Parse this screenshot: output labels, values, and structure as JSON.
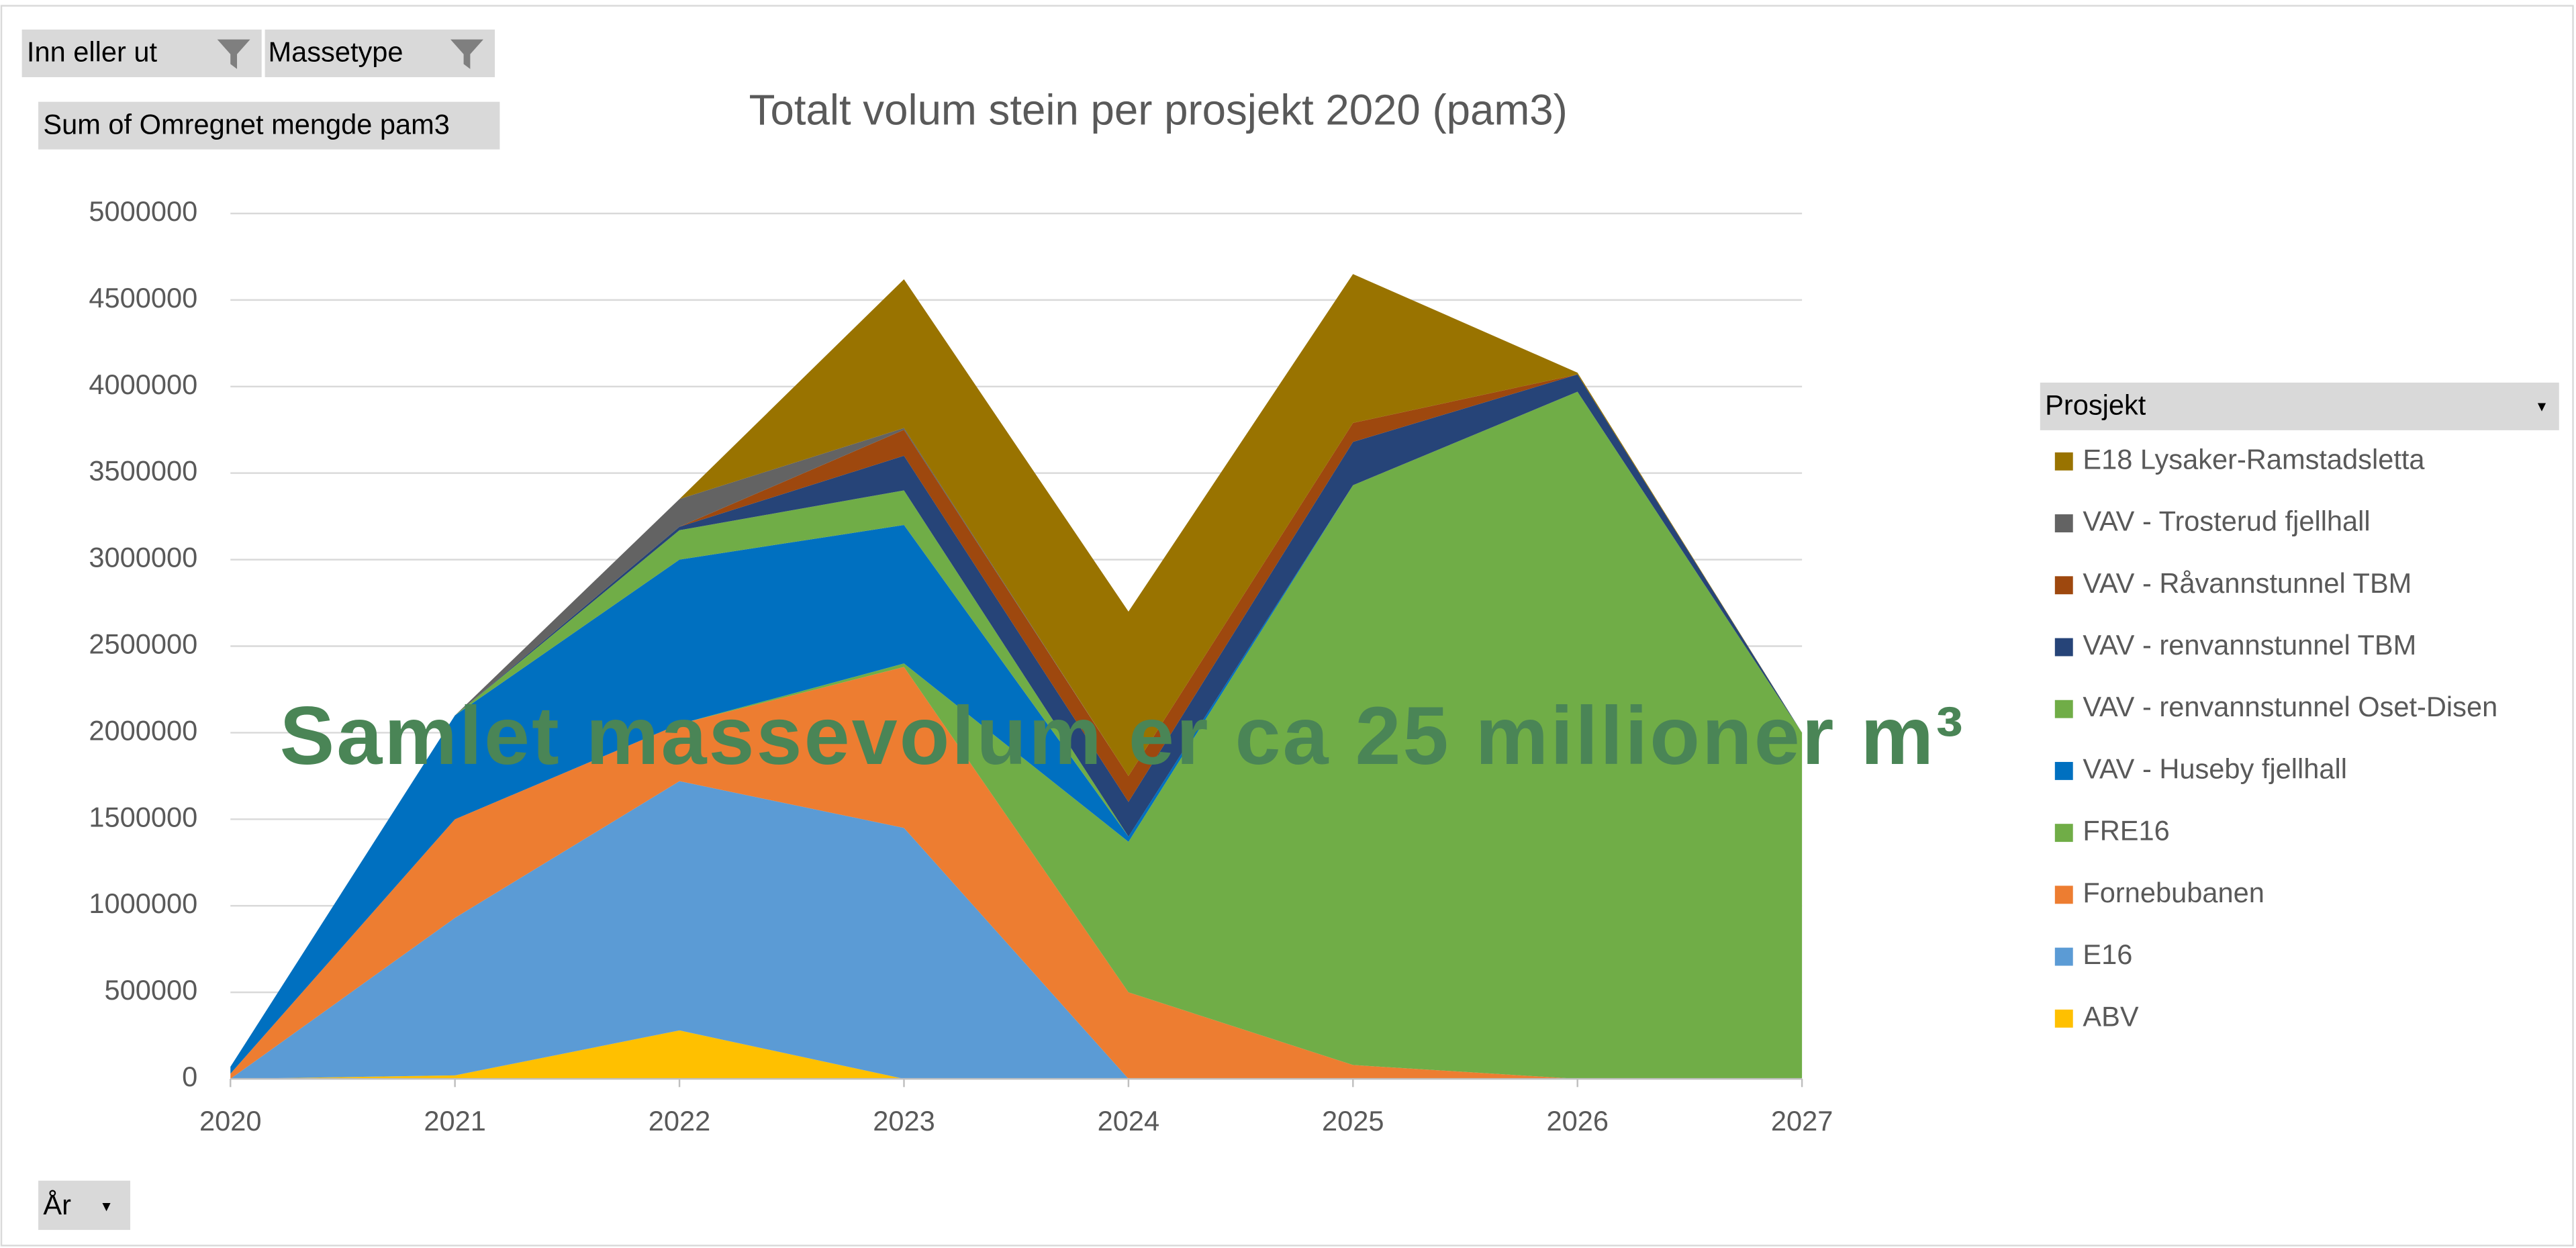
{
  "pivot": {
    "filters": [
      "Inn eller ut",
      "Massetype"
    ],
    "value_field": "Sum of Omregnet mengde pam3",
    "legend_field": "Prosjekt",
    "axis_field": "År"
  },
  "chart_data": {
    "type": "area",
    "stacked": true,
    "title": "Totalt volum stein per prosjekt 2020 (pam3)",
    "annotation": "Samlet massevolum er ca 25 millioner m³",
    "x": [
      2020,
      2021,
      2022,
      2023,
      2024,
      2025,
      2026,
      2027
    ],
    "xlim": [
      2020,
      2027
    ],
    "xticks": [
      2020,
      2021,
      2022,
      2023,
      2024,
      2025,
      2026,
      2027
    ],
    "ylim": [
      0,
      5000000
    ],
    "yticks": [
      0,
      500000,
      1000000,
      1500000,
      2000000,
      2500000,
      3000000,
      3500000,
      4000000,
      4500000,
      5000000
    ],
    "grid": true,
    "legend": "right",
    "series": [
      {
        "name": "ABV",
        "color": "#ffc000",
        "values": [
          0,
          20000,
          280000,
          0,
          0,
          0,
          0,
          0
        ]
      },
      {
        "name": "E16",
        "color": "#5b9bd5",
        "values": [
          0,
          910000,
          1440000,
          1450000,
          0,
          0,
          0,
          0
        ]
      },
      {
        "name": "Fornebubanen",
        "color": "#ed7d31",
        "values": [
          30000,
          570000,
          330000,
          930000,
          500000,
          80000,
          0,
          0
        ]
      },
      {
        "name": "FRE16",
        "color": "#70ad47",
        "values": [
          0,
          0,
          0,
          20000,
          870000,
          3350000,
          3970000,
          2000000
        ]
      },
      {
        "name": "VAV - Huseby fjellhall",
        "color": "#0070c0",
        "values": [
          40000,
          600000,
          950000,
          800000,
          30000,
          0,
          0,
          0
        ]
      },
      {
        "name": "VAV - renvannstunnel Oset-Disen",
        "color": "#70ad47",
        "values": [
          0,
          0,
          170000,
          200000,
          0,
          0,
          0,
          0
        ]
      },
      {
        "name": "VAV - renvannstunnel TBM",
        "color": "#264478",
        "values": [
          0,
          0,
          20000,
          200000,
          200000,
          250000,
          100000,
          0
        ]
      },
      {
        "name": "VAV - Råvannstunnel TBM",
        "color": "#9e480e",
        "values": [
          0,
          0,
          0,
          150000,
          150000,
          110000,
          0,
          0
        ]
      },
      {
        "name": "VAV - Trosterud fjellhall",
        "color": "#636363",
        "values": [
          0,
          0,
          160000,
          10000,
          0,
          0,
          0,
          0
        ]
      },
      {
        "name": "E18 Lysaker-Ramstadsletta",
        "color": "#997300",
        "values": [
          0,
          0,
          0,
          860000,
          950000,
          860000,
          10000,
          0
        ]
      }
    ]
  }
}
